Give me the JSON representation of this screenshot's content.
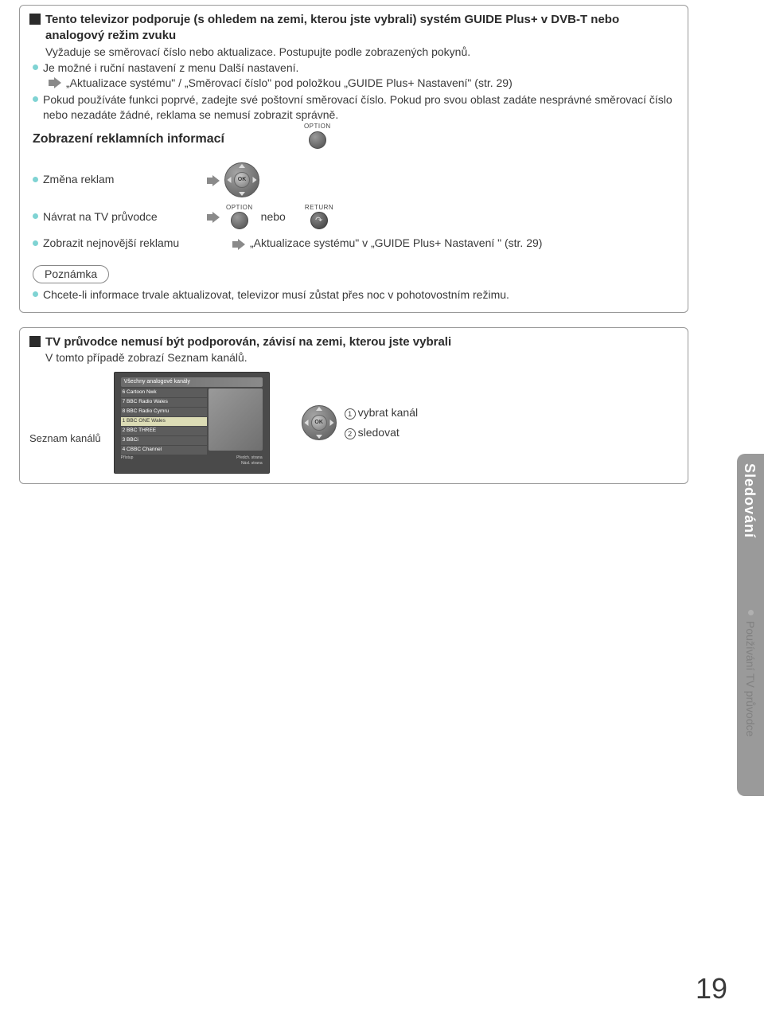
{
  "box1": {
    "heading": "Tento televizor podporuje (s ohledem na zemi, kterou jste vybrali) systém GUIDE Plus+ v DVB-T nebo analogový režim zvuku",
    "line1": "Vyžaduje se směrovací číslo nebo aktualizace. Postupujte podle zobrazených pokynů.",
    "bullet1": "Je možné i ruční nastavení z menu Další nastavení.",
    "arrow_text": "„Aktualizace systému\" / „Směrovací číslo\" pod položkou „GUIDE Plus+ Nastavení\" (str. 29)",
    "bullet2": "Pokud používáte funkci poprvé, zadejte své poštovní směrovací číslo. Pokud pro svou oblast zadáte nesprávné směrovací číslo nebo nezadáte žádné, reklama se nemusí zobrazit správně.",
    "subheading": "Zobrazení reklamních informací",
    "option_label": "OPTION",
    "item1": "Změna reklam",
    "item2": "Návrat na TV průvodce",
    "nebo": "nebo",
    "return_label": "RETURN",
    "item3": "Zobrazit nejnovější reklamu",
    "item3_arrow": "„Aktualizace systému\" v „GUIDE Plus+ Nastavení \" (str. 29)",
    "note_label": "Poznámka",
    "note_text": "Chcete-li informace trvale aktualizovat, televizor musí zůstat přes noc v pohotovostním režimu.",
    "ok_label": "OK"
  },
  "box2": {
    "heading": "TV průvodce nemusí být podporován, závisí na zemi, kterou jste vybrali",
    "line1": "V tomto případě zobrazí Seznam kanálů.",
    "seznam_label": "Seznam kanálů",
    "banner": "Všechny analogové kanály",
    "channels": [
      {
        "n": "6",
        "t": "Cartoon Nwk"
      },
      {
        "n": "7",
        "t": "BBC Radio Wales"
      },
      {
        "n": "8",
        "t": "BBC Radio Cymru"
      },
      {
        "n": "1",
        "t": "BBC ONE Wales"
      },
      {
        "n": "2",
        "t": "BBC THREE"
      },
      {
        "n": "3",
        "t": "BBCi"
      },
      {
        "n": "4",
        "t": "CBBC Channel"
      }
    ],
    "hl_index": 3,
    "ok_label": "OK",
    "step1": "vybrat kanál",
    "step2": "sledovat",
    "footer_left": "Přístup",
    "footer_right": "Předch. strana\nNásl. strana"
  },
  "side": {
    "tab1": "Sledování",
    "tab2": "Používání TV průvodce"
  },
  "page_number": "19",
  "colors": {
    "bullet_cyan": "#7fd3d3",
    "side_gray": "#9a9a9a",
    "text_gray": "#808080"
  }
}
